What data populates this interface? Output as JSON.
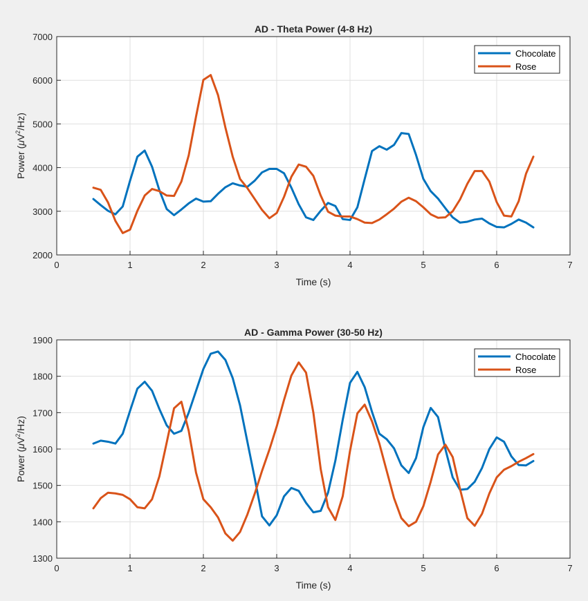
{
  "chart_data": [
    {
      "type": "line",
      "title": "AD - Theta Power (4-8 Hz)",
      "xlabel": "Time (s)",
      "ylabel": {
        "prefix": "Power (",
        "mu": "μ",
        "unit": "V",
        "sup": "2",
        "suffix": "/Hz)"
      },
      "xlim": [
        0,
        7
      ],
      "ylim": [
        2000,
        7000
      ],
      "xticks": [
        "0",
        "1",
        "2",
        "3",
        "4",
        "5",
        "6",
        "7"
      ],
      "yticks": [
        "2000",
        "3000",
        "4000",
        "5000",
        "6000",
        "7000"
      ],
      "grid": true,
      "legend_position": "top-right",
      "x": [
        0.5,
        0.6,
        0.7,
        0.8,
        0.9,
        1.0,
        1.1,
        1.2,
        1.3,
        1.4,
        1.5,
        1.6,
        1.7,
        1.8,
        1.9,
        2.0,
        2.1,
        2.2,
        2.3,
        2.4,
        2.5,
        2.6,
        2.7,
        2.8,
        2.9,
        3.0,
        3.1,
        3.2,
        3.3,
        3.4,
        3.5,
        3.6,
        3.7,
        3.8,
        3.9,
        4.0,
        4.1,
        4.2,
        4.3,
        4.4,
        4.5,
        4.6,
        4.7,
        4.8,
        4.9,
        5.0,
        5.1,
        5.2,
        5.3,
        5.4,
        5.5,
        5.6,
        5.7,
        5.8,
        5.9,
        6.0,
        6.1,
        6.2,
        6.3,
        6.4,
        6.5
      ],
      "series": [
        {
          "name": "Chocolate",
          "color": "#0072bd",
          "values": [
            3280,
            3140,
            3010,
            2930,
            3110,
            3700,
            4250,
            4390,
            4020,
            3480,
            3050,
            2910,
            3040,
            3180,
            3290,
            3220,
            3230,
            3400,
            3550,
            3640,
            3590,
            3560,
            3700,
            3890,
            3970,
            3970,
            3870,
            3540,
            3160,
            2860,
            2800,
            3010,
            3190,
            3120,
            2820,
            2800,
            3090,
            3740,
            4380,
            4490,
            4410,
            4520,
            4790,
            4770,
            4290,
            3740,
            3460,
            3290,
            3070,
            2860,
            2740,
            2760,
            2810,
            2830,
            2720,
            2640,
            2630,
            2710,
            2810,
            2740,
            2630
          ]
        },
        {
          "name": "Rose",
          "color": "#d95319",
          "values": [
            3540,
            3490,
            3200,
            2780,
            2500,
            2580,
            3010,
            3360,
            3510,
            3460,
            3360,
            3350,
            3680,
            4280,
            5170,
            6010,
            6120,
            5660,
            4920,
            4250,
            3740,
            3530,
            3280,
            3030,
            2840,
            2960,
            3330,
            3790,
            4070,
            4020,
            3810,
            3360,
            2990,
            2900,
            2880,
            2880,
            2820,
            2740,
            2730,
            2810,
            2930,
            3060,
            3220,
            3310,
            3230,
            3090,
            2930,
            2850,
            2860,
            3000,
            3270,
            3630,
            3920,
            3920,
            3680,
            3210,
            2900,
            2880,
            3230,
            3860,
            4250
          ]
        }
      ]
    },
    {
      "type": "line",
      "title": "AD - Gamma Power (30-50 Hz)",
      "xlabel": "Time (s)",
      "ylabel": {
        "prefix": "Power (",
        "mu": "μ",
        "unit": "V",
        "sup": "2",
        "suffix": "/Hz)"
      },
      "xlim": [
        0,
        7
      ],
      "ylim": [
        1300,
        1900
      ],
      "xticks": [
        "0",
        "1",
        "2",
        "3",
        "4",
        "5",
        "6",
        "7"
      ],
      "yticks": [
        "1300",
        "1400",
        "1500",
        "1600",
        "1700",
        "1800",
        "1900"
      ],
      "grid": true,
      "legend_position": "top-right",
      "x": [
        0.5,
        0.6,
        0.7,
        0.8,
        0.9,
        1.0,
        1.1,
        1.2,
        1.3,
        1.4,
        1.5,
        1.6,
        1.7,
        1.8,
        1.9,
        2.0,
        2.1,
        2.2,
        2.3,
        2.4,
        2.5,
        2.6,
        2.7,
        2.8,
        2.9,
        3.0,
        3.1,
        3.2,
        3.3,
        3.4,
        3.5,
        3.6,
        3.7,
        3.8,
        3.9,
        4.0,
        4.1,
        4.2,
        4.3,
        4.4,
        4.5,
        4.6,
        4.7,
        4.8,
        4.9,
        5.0,
        5.1,
        5.2,
        5.3,
        5.4,
        5.5,
        5.6,
        5.7,
        5.8,
        5.9,
        6.0,
        6.1,
        6.2,
        6.3,
        6.4,
        6.5
      ],
      "series": [
        {
          "name": "Chocolate",
          "color": "#0072bd",
          "values": [
            1615,
            1623,
            1620,
            1615,
            1642,
            1705,
            1766,
            1785,
            1760,
            1710,
            1665,
            1642,
            1650,
            1700,
            1760,
            1820,
            1862,
            1868,
            1845,
            1795,
            1720,
            1620,
            1520,
            1415,
            1390,
            1418,
            1470,
            1493,
            1485,
            1452,
            1426,
            1430,
            1480,
            1568,
            1680,
            1782,
            1812,
            1770,
            1702,
            1642,
            1627,
            1602,
            1555,
            1534,
            1575,
            1660,
            1713,
            1688,
            1600,
            1522,
            1488,
            1490,
            1510,
            1548,
            1600,
            1632,
            1620,
            1580,
            1556,
            1555,
            1567
          ]
        },
        {
          "name": "Rose",
          "color": "#d95319",
          "values": [
            1437,
            1465,
            1480,
            1478,
            1474,
            1462,
            1440,
            1437,
            1462,
            1525,
            1618,
            1712,
            1730,
            1650,
            1535,
            1462,
            1440,
            1412,
            1368,
            1348,
            1372,
            1420,
            1477,
            1540,
            1598,
            1662,
            1735,
            1802,
            1838,
            1810,
            1700,
            1545,
            1440,
            1405,
            1470,
            1595,
            1698,
            1722,
            1676,
            1615,
            1540,
            1465,
            1410,
            1388,
            1400,
            1443,
            1510,
            1585,
            1612,
            1578,
            1490,
            1410,
            1389,
            1422,
            1478,
            1522,
            1543,
            1553,
            1565,
            1575,
            1586
          ]
        }
      ]
    }
  ]
}
